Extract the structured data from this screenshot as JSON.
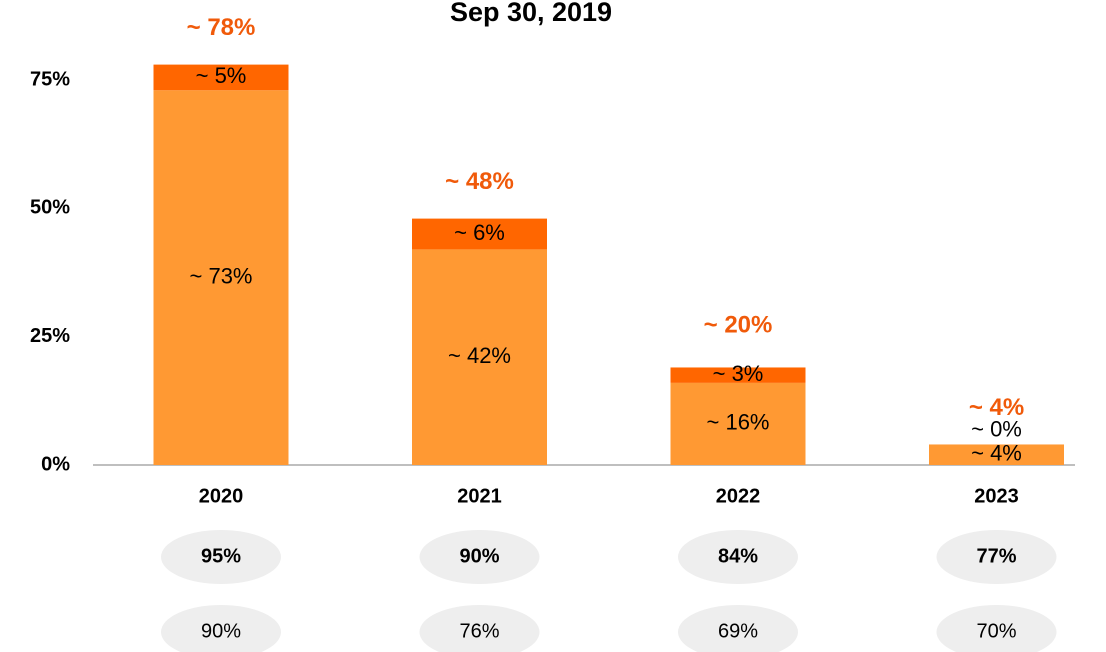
{
  "chart_data": {
    "type": "stacked_bar",
    "title": "Sep 30, 2019",
    "categories": [
      "2020",
      "2021",
      "2022",
      "2023"
    ],
    "series": [
      {
        "color": "#ff9933",
        "values": [
          73,
          42,
          16,
          4
        ],
        "value_labels": [
          "~ 73%",
          "~ 42%",
          "~ 16%",
          "~ 4%"
        ]
      },
      {
        "color": "#ff6600",
        "values": [
          5,
          6,
          3,
          0
        ],
        "value_labels": [
          "~ 5%",
          "~ 6%",
          "~ 3%",
          "~ 0%"
        ]
      }
    ],
    "totals": [
      78,
      48,
      20,
      4
    ],
    "total_labels": [
      "~ 78%",
      "~ 48%",
      "~ 20%",
      "~ 4%"
    ],
    "total_color": "#f05a0a",
    "ylim": [
      0,
      90
    ],
    "yticks": [
      {
        "value": 0,
        "label": "0%"
      },
      {
        "value": 25,
        "label": "25%"
      },
      {
        "value": 50,
        "label": "50%"
      },
      {
        "value": 75,
        "label": "75%"
      }
    ],
    "summary_rows": [
      {
        "bold": true,
        "values": [
          95,
          90,
          84,
          77
        ],
        "value_labels": [
          "95%",
          "90%",
          "84%",
          "77%"
        ]
      },
      {
        "bold": false,
        "values": [
          90,
          76,
          69,
          70
        ],
        "value_labels": [
          "90%",
          "76%",
          "69%",
          "70%"
        ]
      }
    ]
  }
}
